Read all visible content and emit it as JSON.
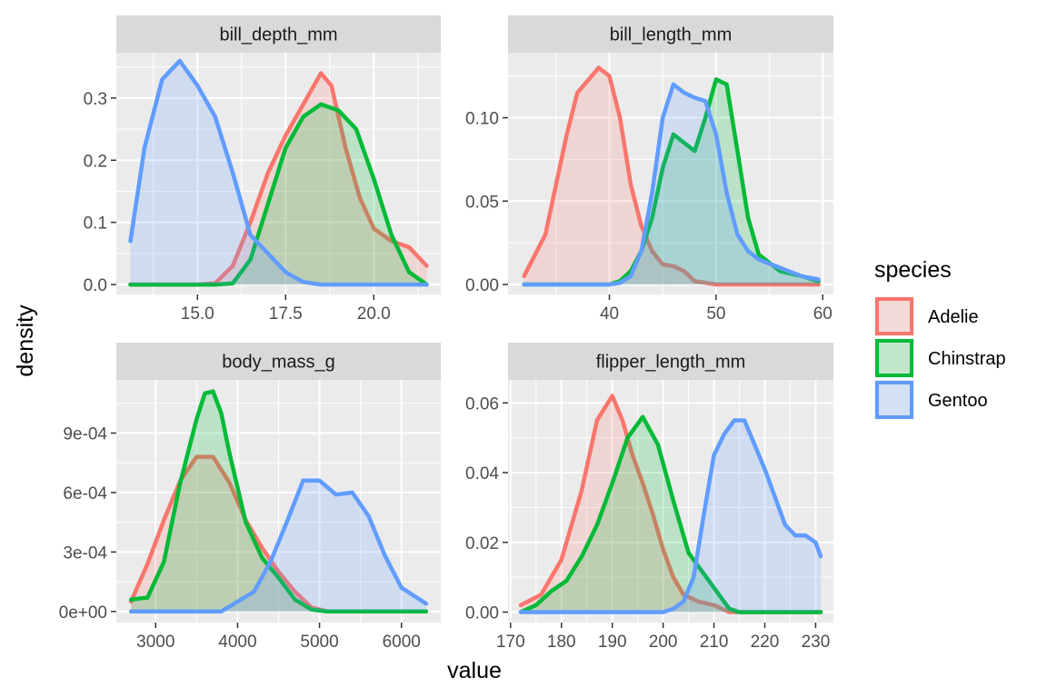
{
  "chart_data": {
    "type": "area",
    "subtype": "faceted-density",
    "xlabel": "value",
    "ylabel": "density",
    "legend": {
      "title": "species",
      "position": "right",
      "items": [
        {
          "name": "Adelie",
          "color": "#F8766D"
        },
        {
          "name": "Chinstrap",
          "color": "#00BA38"
        },
        {
          "name": "Gentoo",
          "color": "#619CFF"
        }
      ]
    },
    "grid": true,
    "panels": [
      {
        "strip": "bill_depth_mm",
        "xlim": [
          12.7,
          21.9
        ],
        "ylim": [
          -0.016,
          0.373
        ],
        "xticks": [
          15.0,
          17.5,
          20.0
        ],
        "xtick_labels": [
          "15.0",
          "17.5",
          "20.0"
        ],
        "yticks": [
          0.0,
          0.1,
          0.2,
          0.3
        ],
        "ytick_labels": [
          "0.0",
          "0.1",
          "0.2",
          "0.3"
        ],
        "series": [
          {
            "name": "Adelie",
            "x": [
              13.1,
              15.0,
              15.5,
              16.0,
              16.5,
              17.0,
              17.5,
              18.0,
              18.5,
              18.8,
              19.2,
              19.6,
              20.0,
              20.5,
              21.0,
              21.5
            ],
            "y": [
              0.0,
              0.0,
              0.002,
              0.03,
              0.1,
              0.18,
              0.24,
              0.29,
              0.34,
              0.32,
              0.22,
              0.14,
              0.09,
              0.07,
              0.06,
              0.03
            ]
          },
          {
            "name": "Chinstrap",
            "x": [
              13.1,
              15.5,
              16.0,
              16.5,
              17.0,
              17.5,
              18.0,
              18.5,
              19.0,
              19.5,
              20.0,
              20.5,
              21.0,
              21.5
            ],
            "y": [
              0.0,
              0.0,
              0.002,
              0.04,
              0.13,
              0.22,
              0.27,
              0.29,
              0.28,
              0.25,
              0.17,
              0.08,
              0.02,
              0.0
            ]
          },
          {
            "name": "Gentoo",
            "x": [
              13.1,
              13.5,
              14.0,
              14.5,
              15.0,
              15.5,
              16.0,
              16.5,
              17.0,
              17.5,
              18.0,
              18.5,
              19.0,
              20.0,
              21.5
            ],
            "y": [
              0.07,
              0.22,
              0.33,
              0.36,
              0.32,
              0.27,
              0.18,
              0.08,
              0.05,
              0.02,
              0.004,
              0.0,
              0.0,
              0.0,
              0.0
            ]
          }
        ]
      },
      {
        "strip": "bill_length_mm",
        "xlim": [
          30.5,
          61.0
        ],
        "ylim": [
          -0.006,
          0.139
        ],
        "xticks": [
          40,
          50,
          60
        ],
        "xtick_labels": [
          "40",
          "50",
          "60"
        ],
        "yticks": [
          0.0,
          0.05,
          0.1
        ],
        "ytick_labels": [
          "0.00",
          "0.05",
          "0.10"
        ],
        "series": [
          {
            "name": "Adelie",
            "x": [
              32,
              34,
              36,
              37,
              39,
              40,
              41,
              42,
              43,
              44,
              45,
              46,
              47,
              48,
              50,
              52,
              55,
              59.6
            ],
            "y": [
              0.005,
              0.03,
              0.09,
              0.115,
              0.13,
              0.125,
              0.1,
              0.06,
              0.035,
              0.02,
              0.012,
              0.011,
              0.008,
              0.002,
              0.0,
              0.0,
              0.0,
              0.0
            ]
          },
          {
            "name": "Chinstrap",
            "x": [
              32,
              40,
              41,
              42,
              43,
              44,
              45,
              46,
              47,
              48,
              49,
              50,
              51,
              52,
              53,
              54,
              56,
              58,
              59.6
            ],
            "y": [
              0.0,
              0.0,
              0.002,
              0.008,
              0.02,
              0.04,
              0.07,
              0.09,
              0.085,
              0.08,
              0.1,
              0.123,
              0.12,
              0.08,
              0.04,
              0.018,
              0.008,
              0.005,
              0.002
            ]
          },
          {
            "name": "Gentoo",
            "x": [
              32,
              40,
              41,
              42,
              43,
              44,
              45,
              46,
              47,
              48,
              49,
              50,
              51,
              52,
              53,
              54,
              56,
              58,
              59.6
            ],
            "y": [
              0.0,
              0.0,
              0.001,
              0.005,
              0.02,
              0.055,
              0.1,
              0.12,
              0.115,
              0.112,
              0.11,
              0.09,
              0.055,
              0.03,
              0.02,
              0.015,
              0.01,
              0.005,
              0.003
            ]
          }
        ]
      },
      {
        "strip": "body_mass_g",
        "xlim": [
          2520,
          6480
        ],
        "ylim": [
          -5.6e-05,
          0.001168
        ],
        "xticks": [
          3000,
          4000,
          5000,
          6000
        ],
        "xtick_labels": [
          "3000",
          "4000",
          "5000",
          "6000"
        ],
        "yticks": [
          0.0,
          0.0003,
          0.0006,
          0.0009
        ],
        "ytick_labels": [
          "0e+00",
          "3e-04",
          "6e-04",
          "9e-04"
        ],
        "series": [
          {
            "name": "Adelie",
            "x": [
              2700,
              2900,
              3100,
              3300,
              3500,
              3700,
              3900,
              4100,
              4300,
              4500,
              4700,
              4900,
              5100,
              6300
            ],
            "y": [
              5e-05,
              0.00024,
              0.00046,
              0.00066,
              0.00078,
              0.00078,
              0.00065,
              0.00046,
              0.00032,
              0.0002,
              0.0001,
              2e-05,
              0.0,
              0.0
            ]
          },
          {
            "name": "Chinstrap",
            "x": [
              2700,
              2900,
              3100,
              3300,
              3500,
              3600,
              3700,
              3800,
              3900,
              4100,
              4300,
              4500,
              4700,
              4900,
              5100,
              6300
            ],
            "y": [
              6e-05,
              7e-05,
              0.00025,
              0.00065,
              0.00097,
              0.0011,
              0.00111,
              0.001,
              0.0008,
              0.00045,
              0.00027,
              0.00017,
              6e-05,
              1e-05,
              0.0,
              0.0
            ]
          },
          {
            "name": "Gentoo",
            "x": [
              2700,
              3800,
              4000,
              4200,
              4400,
              4600,
              4800,
              5000,
              5200,
              5400,
              5600,
              5800,
              6000,
              6300
            ],
            "y": [
              0.0,
              0.0,
              5e-05,
              0.0001,
              0.00025,
              0.00045,
              0.00066,
              0.00066,
              0.00059,
              0.0006,
              0.00048,
              0.00028,
              0.00012,
              4e-05
            ]
          }
        ]
      },
      {
        "strip": "flipper_length_mm",
        "xlim": [
          169.5,
          233.5
        ],
        "ylim": [
          -0.003,
          0.0666
        ],
        "xticks": [
          170,
          180,
          190,
          200,
          210,
          220,
          230
        ],
        "xtick_labels": [
          "170",
          "180",
          "190",
          "200",
          "210",
          "220",
          "230"
        ],
        "yticks": [
          0.0,
          0.02,
          0.04,
          0.06
        ],
        "ytick_labels": [
          "0.00",
          "0.02",
          "0.04",
          "0.06"
        ],
        "series": [
          {
            "name": "Adelie",
            "x": [
              172,
              176,
              180,
              184,
              187,
              190,
              192,
              194,
              196,
              198,
              200,
              202,
              204,
              207,
              210,
              213,
              215,
              231
            ],
            "y": [
              0.002,
              0.005,
              0.015,
              0.035,
              0.055,
              0.062,
              0.055,
              0.045,
              0.037,
              0.028,
              0.018,
              0.01,
              0.005,
              0.003,
              0.002,
              0.0,
              0.0,
              0.0
            ]
          },
          {
            "name": "Chinstrap",
            "x": [
              172,
              175,
              178,
              181,
              184,
              187,
              190,
              193,
              196,
              199,
              202,
              205,
              208,
              211,
              213,
              215,
              231
            ],
            "y": [
              0.0,
              0.002,
              0.006,
              0.009,
              0.016,
              0.025,
              0.037,
              0.05,
              0.056,
              0.048,
              0.032,
              0.017,
              0.011,
              0.005,
              0.001,
              0.0,
              0.0
            ]
          },
          {
            "name": "Gentoo",
            "x": [
              172,
              200,
              202,
              204,
              206,
              208,
              210,
              212,
              214,
              216,
              218,
              220,
              222,
              224,
              226,
              228,
              230,
              231
            ],
            "y": [
              0.0,
              0.0,
              0.001,
              0.003,
              0.01,
              0.028,
              0.045,
              0.051,
              0.055,
              0.055,
              0.048,
              0.041,
              0.033,
              0.025,
              0.022,
              0.022,
              0.02,
              0.016
            ]
          }
        ]
      }
    ]
  }
}
